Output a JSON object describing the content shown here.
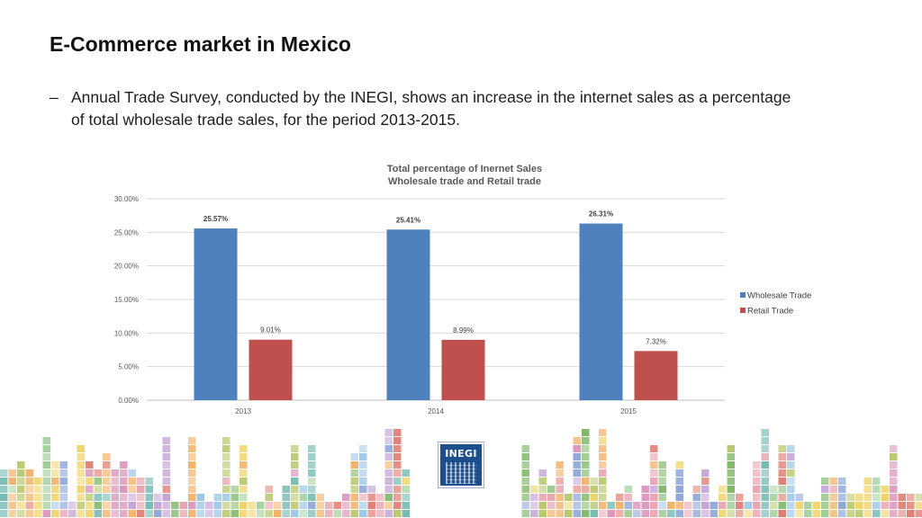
{
  "slide": {
    "title": "E-Commerce market in Mexico",
    "bullet_dash": "–",
    "bullet_text": "Annual Trade Survey, conducted by the INEGI, shows an increase in the internet sales as a percentage of total wholesale trade sales, for the period 2013-2015."
  },
  "chart_data": {
    "type": "bar",
    "title_lines": [
      "Total percentage of Inernet Sales",
      "Wholesale trade and Retail trade"
    ],
    "categories": [
      "2013",
      "2014",
      "2015"
    ],
    "series": [
      {
        "name": "Wholesale Trade",
        "values": [
          25.57,
          25.41,
          26.31
        ],
        "labels": [
          "25.57%",
          "25.41%",
          "26.31%"
        ],
        "color": "#4f81bd"
      },
      {
        "name": "Retail Trade",
        "values": [
          9.01,
          8.99,
          7.32
        ],
        "labels": [
          "9.01%",
          "8.99%",
          "7.32%"
        ],
        "color": "#c0504d"
      }
    ],
    "y_ticks": [
      0,
      5,
      10,
      15,
      20,
      25,
      30
    ],
    "y_tick_labels": [
      "0.00%",
      "5.00%",
      "10.00%",
      "15.00%",
      "20.00%",
      "25.00%",
      "30.00%"
    ],
    "ylim": [
      0,
      30
    ],
    "grid": true,
    "legend_position": "right"
  },
  "footer": {
    "logo_text": "INEGI",
    "logo_caption_1": "INSTITUTO NACIONAL",
    "logo_caption_2": "DE ESTADÍSTICA Y GEOGRAFÍA"
  },
  "colors": {
    "wholesale": "#4f81bd",
    "retail": "#c0504d",
    "logo": "#1d4f8c"
  }
}
